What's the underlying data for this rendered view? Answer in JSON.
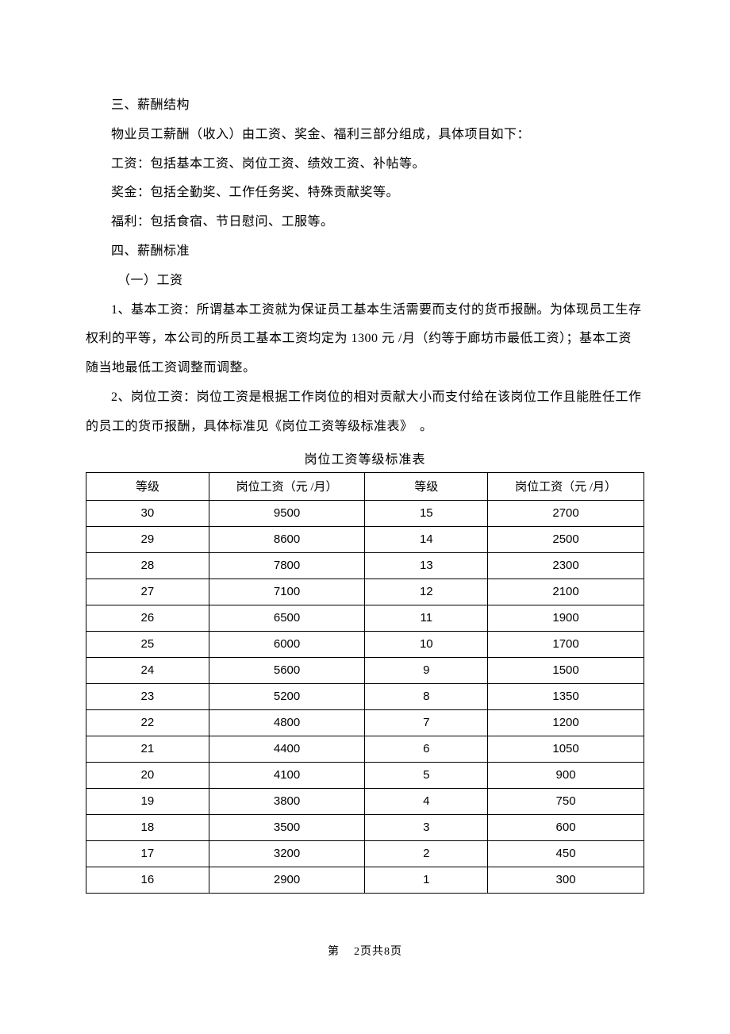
{
  "paragraphs": {
    "p1": "三、薪酬结构",
    "p2": "物业员工薪酬（收入）由工资、奖金、福利三部分组成，具体项目如下：",
    "p3": "工资：包括基本工资、岗位工资、绩效工资、补帖等。",
    "p4": "奖金：包括全勤奖、工作任务奖、特殊贡献奖等。",
    "p5": "福利：包括食宿、节日慰问、工服等。",
    "p6": "四、薪酬标准",
    "p7": "（一）工资",
    "p8": "1、基本工资：所谓基本工资就为保证员工基本生活需要而支付的货币报酬。为体现员工生存权利的平等，本公司的所员工基本工资均定为 1300 元 /月（约等于廊坊市最低工资）；基本工资随当地最低工资调整而调整。",
    "p9": "2、岗位工资：岗位工资是根据工作岗位的相对贡献大小而支付给在该岗位工作且能胜任工作的员工的货币报酬，具体标准见《岗位工资等级标准表》　。"
  },
  "table": {
    "title": "岗位工资等级标准表",
    "headers": [
      "等级",
      "岗位工资（元 /月）",
      "等级",
      "岗位工资（元 /月）"
    ],
    "rows": [
      [
        "30",
        "9500",
        "15",
        "2700"
      ],
      [
        "29",
        "8600",
        "14",
        "2500"
      ],
      [
        "28",
        "7800",
        "13",
        "2300"
      ],
      [
        "27",
        "7100",
        "12",
        "2100"
      ],
      [
        "26",
        "6500",
        "11",
        "1900"
      ],
      [
        "25",
        "6000",
        "10",
        "1700"
      ],
      [
        "24",
        "5600",
        "9",
        "1500"
      ],
      [
        "23",
        "5200",
        "8",
        "1350"
      ],
      [
        "22",
        "4800",
        "7",
        "1200"
      ],
      [
        "21",
        "4400",
        "6",
        "1050"
      ],
      [
        "20",
        "4100",
        "5",
        "900"
      ],
      [
        "19",
        "3800",
        "4",
        "750"
      ],
      [
        "18",
        "3500",
        "3",
        "600"
      ],
      [
        "17",
        "3200",
        "2",
        "450"
      ],
      [
        "16",
        "2900",
        "1",
        "300"
      ]
    ],
    "column_widths": [
      "22%",
      "28%",
      "22%",
      "28%"
    ]
  },
  "footer": {
    "prefix": "第",
    "current": "2",
    "mid": "页共",
    "total": "8",
    "suffix": "页"
  },
  "styles": {
    "background_color": "#ffffff",
    "text_color": "#000000",
    "border_color": "#000000",
    "font_size_body": 16,
    "font_size_table": 15,
    "font_size_footer": 14
  }
}
